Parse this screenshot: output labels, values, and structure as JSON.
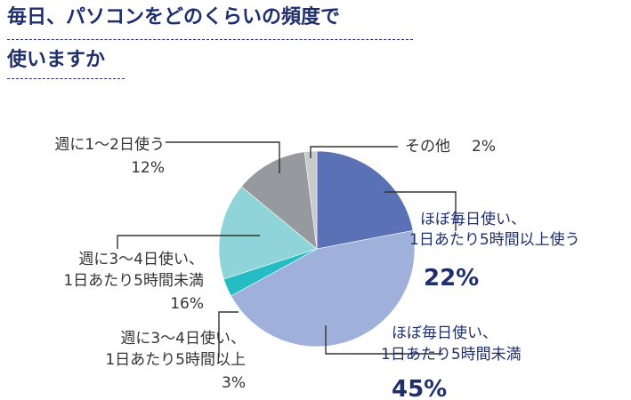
{
  "title_lines": [
    "毎日、パソコンをどのくらいの頻度で",
    "使いますか"
  ],
  "chart_data": {
    "type": "pie",
    "slices": [
      {
        "label_lines": [
          "ほぼ毎日使い、",
          "1日あたり5時間以上使う"
        ],
        "value": 22,
        "value_text": "22%",
        "color": "#5a72b5"
      },
      {
        "label_lines": [
          "ほぼ毎日使い、",
          "1日あたり5時間未満"
        ],
        "value": 45,
        "value_text": "45%",
        "color": "#9fb1db"
      },
      {
        "label_lines": [
          "週に3～4日使い、",
          "1日あたり5時間以上"
        ],
        "value": 3,
        "value_text": "3%",
        "color": "#26bcc4"
      },
      {
        "label_lines": [
          "週に3～4日使い、",
          "1日あたり5時間未満"
        ],
        "value": 16,
        "value_text": "16%",
        "color": "#8ed4d8"
      },
      {
        "label_lines": [
          "週に1～2日使う"
        ],
        "value": 12,
        "value_text": "12%",
        "color": "#96999e"
      },
      {
        "label_lines": [
          "その他"
        ],
        "value": 2,
        "value_text": "2%",
        "color": "#c8cacd"
      }
    ],
    "label_colors": {
      "highlight": "#1f2f6b",
      "normal": "#333333"
    }
  }
}
